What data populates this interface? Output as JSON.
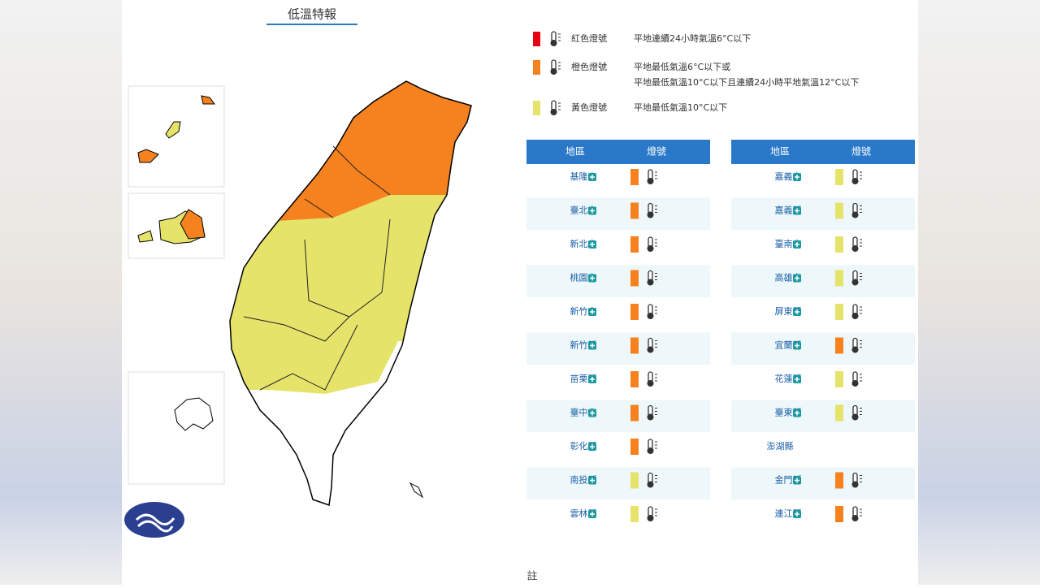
{
  "title": "低溫特報",
  "legend": [
    {
      "label": "紅色燈號",
      "color": "#e60012",
      "lines": [
        "平地連續24小時氣溫6°C以下"
      ]
    },
    {
      "label": "橙色燈號",
      "color": "#f5821f",
      "lines": [
        "平地最低氣溫6°C以下或",
        "平地最低氣溫10°C以下且連續24小時平地氣溫12°C以下"
      ]
    },
    {
      "label": "黃色燈號",
      "color": "#e6e36b",
      "lines": [
        "平地最低氣溫10°C以下"
      ]
    }
  ],
  "tables": [
    {
      "headers": [
        "地區",
        "燈號"
      ],
      "rows": [
        {
          "region": "基隆市",
          "level": 1
        },
        {
          "region": "臺北市",
          "level": 1
        },
        {
          "region": "新北市",
          "level": 1
        },
        {
          "region": "桃園市",
          "level": 1
        },
        {
          "region": "新竹市",
          "level": 1
        },
        {
          "region": "新竹縣",
          "level": 1
        },
        {
          "region": "苗栗縣",
          "level": 1
        },
        {
          "region": "臺中市",
          "level": 1
        },
        {
          "region": "彰化縣",
          "level": 1
        },
        {
          "region": "南投縣",
          "level": 2
        },
        {
          "region": "雲林縣",
          "level": 2
        }
      ]
    },
    {
      "headers": [
        "地區",
        "燈號"
      ],
      "rows": [
        {
          "region": "嘉義市",
          "level": 2
        },
        {
          "region": "嘉義縣",
          "level": 2
        },
        {
          "region": "臺南市",
          "level": 2
        },
        {
          "region": "高雄市",
          "level": 2
        },
        {
          "region": "屏東縣",
          "level": 2
        },
        {
          "region": "宜蘭縣",
          "level": 1
        },
        {
          "region": "花蓮縣",
          "level": 2
        },
        {
          "region": "臺東縣",
          "level": 2
        },
        {
          "region": "澎湖縣"
        },
        {
          "region": "金門縣",
          "level": 1
        },
        {
          "region": "連江縣",
          "level": 1
        }
      ]
    }
  ],
  "footer": "註"
}
